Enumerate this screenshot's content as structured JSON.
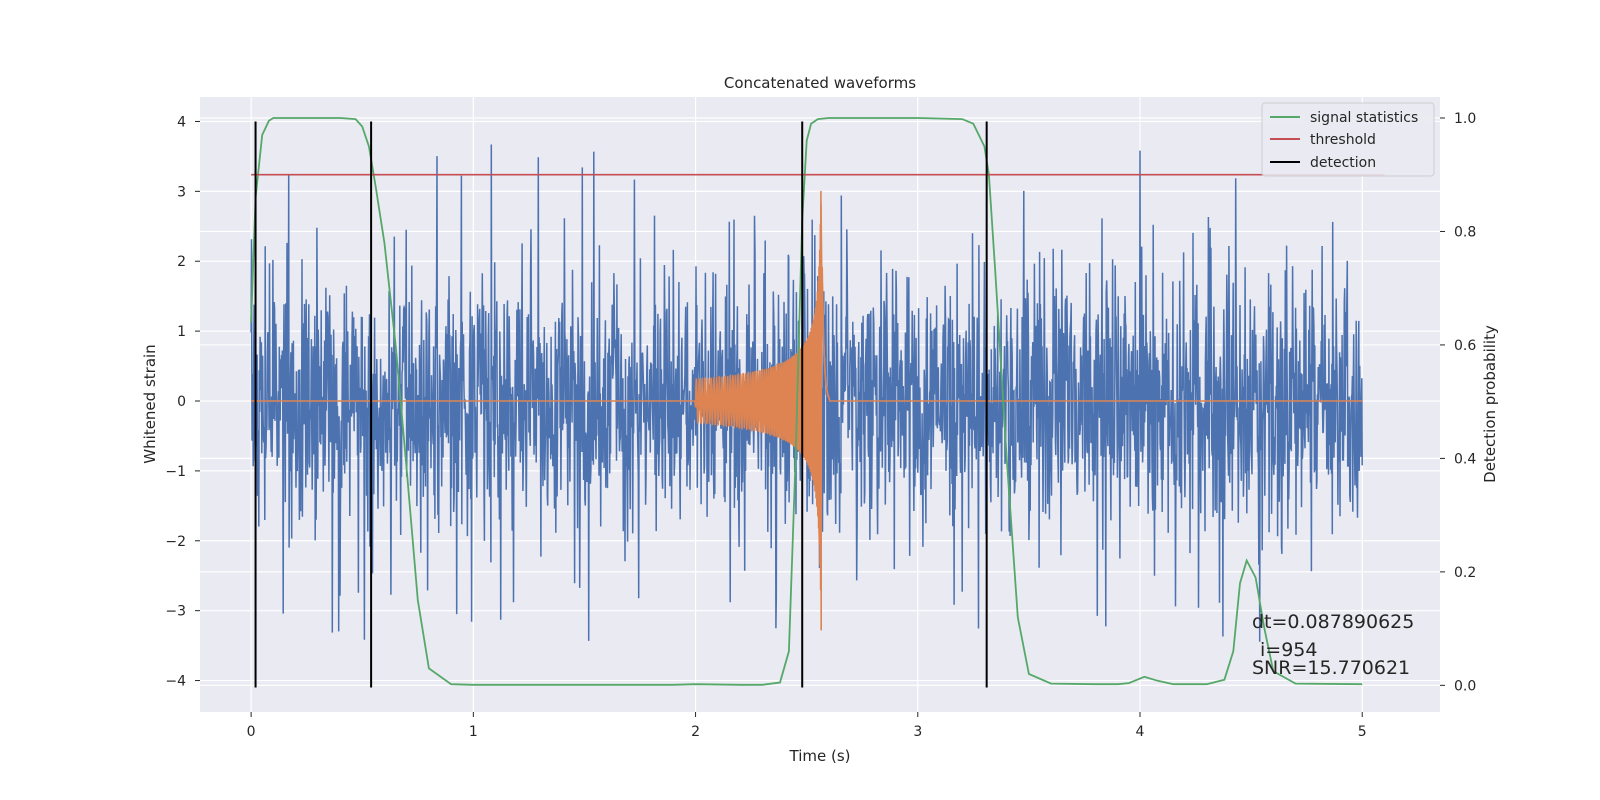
{
  "chart_data": {
    "type": "line",
    "title": "Concatenated waveforms",
    "xlabel": "Time (s)",
    "ylabel": "Whitened strain",
    "ylabel_right": "Detection probability",
    "xlim": [
      -0.23,
      5.35
    ],
    "ylim": [
      -4.45,
      4.35
    ],
    "ylim_right": [
      -0.047,
      1.037
    ],
    "x_ticks": [
      0,
      1,
      2,
      3,
      4,
      5
    ],
    "y_ticks": [
      4,
      3,
      2,
      1,
      0,
      -1,
      -2,
      -3,
      -4
    ],
    "y_ticks_right": [
      1.0,
      0.8,
      0.6,
      0.4,
      0.2,
      0.0
    ],
    "y_tick_labels": [
      "4",
      "3",
      "2",
      "1",
      "0",
      "−1",
      "−2",
      "−3",
      "−4"
    ],
    "y_tick_labels_right": [
      "1.0",
      "0.8",
      "0.6",
      "0.4",
      "0.2",
      "0.0"
    ],
    "legend_position": "top-right",
    "grid": true,
    "colors": {
      "background": "#eaeaf2",
      "grid": "#ffffff",
      "strain": "#4c72b0",
      "waveform": "#dd8452",
      "signal_statistics": "#55a868",
      "threshold": "#c44e52",
      "detection": "#000000"
    },
    "series": [
      {
        "name": "strain",
        "axis": "left",
        "x_range": [
          0,
          5
        ],
        "description_values": {
          "typical_abs_max": 2.5,
          "extreme_max": 3.75,
          "extreme_min": -4.1
        }
      },
      {
        "name": "waveform",
        "axis": "left",
        "x_range": [
          2.0,
          2.6
        ],
        "amplitude_start": 0.3,
        "amplitude_peak": 3.4,
        "peak_time": 2.57
      },
      {
        "name": "signal statistics",
        "axis": "right",
        "x": [
          0.0,
          0.02,
          0.05,
          0.08,
          0.1,
          0.2,
          0.3,
          0.4,
          0.47,
          0.5,
          0.53,
          0.56,
          0.6,
          0.65,
          0.7,
          0.75,
          0.8,
          0.9,
          1.0,
          1.5,
          1.9,
          2.0,
          2.2,
          2.3,
          2.38,
          2.42,
          2.45,
          2.48,
          2.5,
          2.52,
          2.55,
          2.6,
          2.7,
          3.0,
          3.2,
          3.25,
          3.3,
          3.32,
          3.35,
          3.4,
          3.45,
          3.5,
          3.6,
          3.8,
          3.9,
          3.95,
          4.02,
          4.08,
          4.15,
          4.3,
          4.38,
          4.42,
          4.45,
          4.48,
          4.52,
          4.56,
          4.6,
          4.7,
          5.0
        ],
        "y": [
          0.64,
          0.86,
          0.97,
          0.995,
          1.0,
          1.0,
          1.0,
          1.0,
          0.998,
          0.985,
          0.95,
          0.88,
          0.78,
          0.6,
          0.38,
          0.15,
          0.03,
          0.002,
          0.001,
          0.001,
          0.001,
          0.002,
          0.001,
          0.001,
          0.005,
          0.06,
          0.4,
          0.82,
          0.96,
          0.99,
          0.998,
          1.0,
          1.0,
          1.0,
          0.998,
          0.99,
          0.95,
          0.9,
          0.72,
          0.4,
          0.12,
          0.02,
          0.003,
          0.002,
          0.002,
          0.004,
          0.015,
          0.008,
          0.002,
          0.002,
          0.01,
          0.06,
          0.18,
          0.22,
          0.19,
          0.1,
          0.025,
          0.003,
          0.002
        ]
      },
      {
        "name": "threshold",
        "axis": "right",
        "x": [
          0.0,
          5.1
        ],
        "y": [
          0.9,
          0.9
        ]
      },
      {
        "name": "detection",
        "axis": "left",
        "x_positions": [
          0.02,
          0.54,
          2.48,
          3.31
        ],
        "y_range": [
          -4.1,
          4.0
        ]
      }
    ],
    "legend": [
      "signal statistics",
      "threshold",
      "detection"
    ],
    "annotations": {
      "dt": "dt=0.087890625",
      "i": "i=954",
      "snr": "SNR=15.770621"
    }
  }
}
